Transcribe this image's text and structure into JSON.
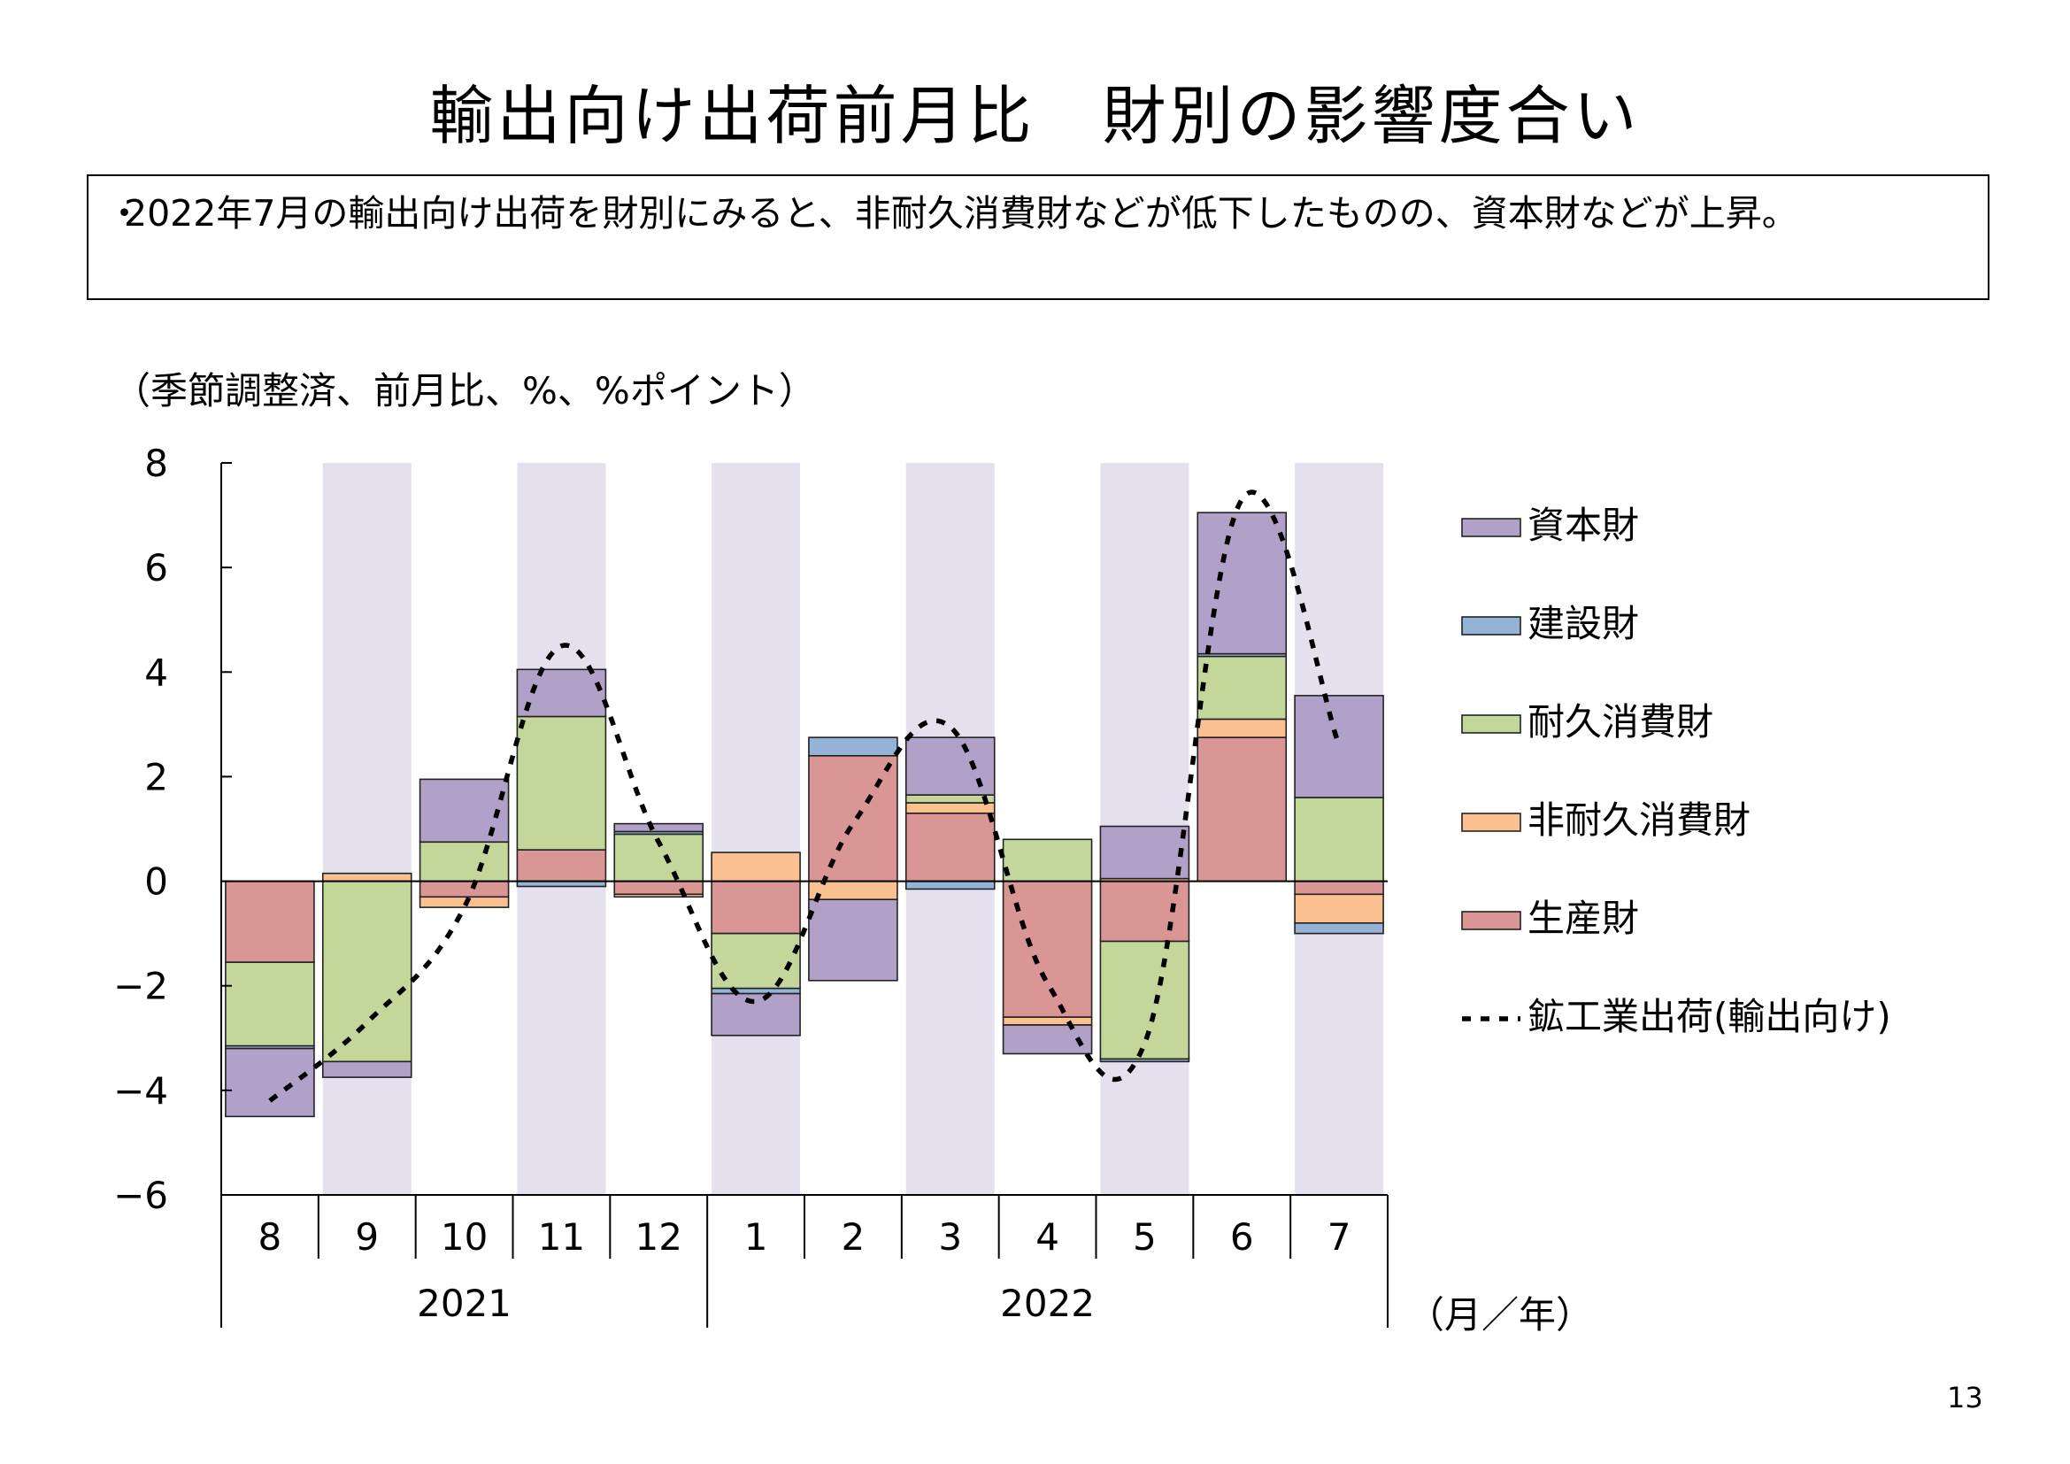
{
  "title": "輸出向け出荷前月比　財別の影響度合い",
  "summary": "2022年7月の輸出向け出荷を財別にみると、非耐久消費財などが低下したものの、資本財などが上昇。",
  "unit_label": "（季節調整済、前月比、%、%ポイント）",
  "page_number": "13",
  "chart_data": {
    "type": "bar",
    "stacked": true,
    "categories": [
      "8",
      "9",
      "10",
      "11",
      "12",
      "1",
      "2",
      "3",
      "4",
      "5",
      "6",
      "7"
    ],
    "year_groups": [
      {
        "label": "2021",
        "categories": [
          "8",
          "9",
          "10",
          "11",
          "12"
        ]
      },
      {
        "label": "2022",
        "categories": [
          "1",
          "2",
          "3",
          "4",
          "5",
          "6",
          "7"
        ]
      }
    ],
    "x_unit_label": "（月／年）",
    "ylim": [
      -6,
      8
    ],
    "yticks": [
      "8",
      "6",
      "4",
      "2",
      "0",
      "−2",
      "−4",
      "−6"
    ],
    "ytick_values": [
      8,
      6,
      4,
      2,
      0,
      -2,
      -4,
      -6
    ],
    "shaded_categories": [
      "9",
      "11",
      "1",
      "3",
      "5",
      "7"
    ],
    "shade_color": "#e4e0ee",
    "series": [
      {
        "name": "生産財",
        "color": "#da9694",
        "values": [
          -1.55,
          0.0,
          -0.3,
          0.6,
          -0.25,
          -1.0,
          2.4,
          1.3,
          -2.6,
          -1.15,
          2.75,
          -0.25
        ]
      },
      {
        "name": "非耐久消費財",
        "color": "#fac090",
        "values": [
          0.0,
          0.15,
          -0.2,
          0.0,
          -0.05,
          0.55,
          -0.35,
          0.2,
          -0.15,
          0.05,
          0.35,
          -0.55
        ]
      },
      {
        "name": "耐久消費財",
        "color": "#c4d79b",
        "values": [
          -1.6,
          -3.45,
          0.75,
          2.55,
          0.9,
          -1.05,
          0.0,
          0.15,
          0.8,
          -2.25,
          1.2,
          1.6
        ]
      },
      {
        "name": "建設財",
        "color": "#95b3d7",
        "values": [
          -0.05,
          0.0,
          0.0,
          -0.1,
          0.05,
          -0.1,
          0.35,
          -0.15,
          0.0,
          -0.05,
          0.05,
          -0.2
        ]
      },
      {
        "name": "資本財",
        "color": "#b1a0c7",
        "values": [
          -1.3,
          -0.3,
          1.2,
          0.9,
          0.15,
          -0.8,
          -1.55,
          1.1,
          -0.55,
          1.0,
          2.7,
          1.95
        ]
      }
    ],
    "line_series": {
      "name": "鉱工業出荷(輸出向け)",
      "values": [
        -4.2,
        -2.7,
        -0.5,
        4.5,
        0.75,
        -2.3,
        1.1,
        2.95,
        -1.95,
        -3.1,
        7.3,
        2.6
      ],
      "style": "dotted",
      "color": "#000000"
    },
    "legend": {
      "placement": "right",
      "order": [
        "資本財",
        "建設財",
        "耐久消費財",
        "非耐久消費財",
        "生産財",
        "鉱工業出荷(輸出向け)"
      ]
    }
  }
}
